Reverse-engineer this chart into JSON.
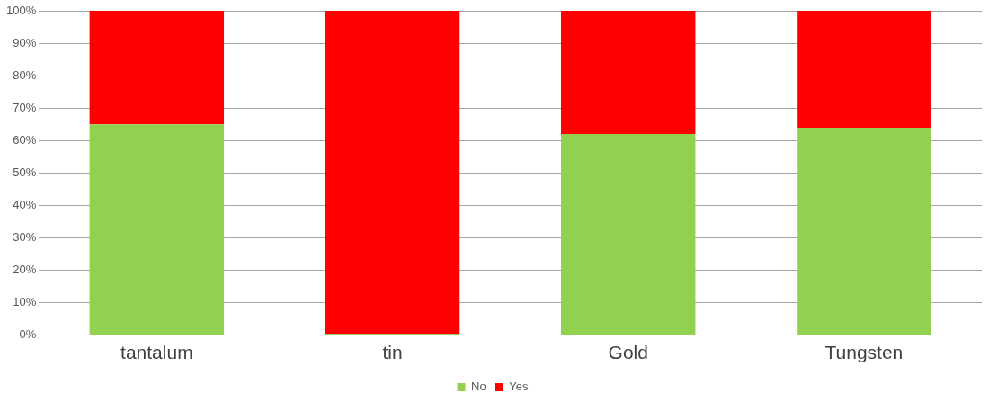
{
  "chart_data": {
    "type": "bar",
    "stacked": true,
    "categories": [
      "tantalum",
      "tin",
      "Gold",
      "Tungsten"
    ],
    "series": [
      {
        "name": "No",
        "color": "#92d050",
        "values": [
          65,
          0.5,
          62,
          64
        ]
      },
      {
        "name": "Yes",
        "color": "#ff0000",
        "values": [
          35,
          99.5,
          38,
          36
        ]
      }
    ],
    "ylim": [
      0,
      100
    ],
    "yticks": [
      {
        "value": 0,
        "label": "0%"
      },
      {
        "value": 10,
        "label": "10%"
      },
      {
        "value": 20,
        "label": "20%"
      },
      {
        "value": 30,
        "label": "30%"
      },
      {
        "value": 40,
        "label": "40%"
      },
      {
        "value": 50,
        "label": "50%"
      },
      {
        "value": 60,
        "label": "60%"
      },
      {
        "value": 70,
        "label": "70%"
      },
      {
        "value": 80,
        "label": "80%"
      },
      {
        "value": 90,
        "label": "90%"
      },
      {
        "value": 100,
        "label": "100%"
      }
    ],
    "grid": "y",
    "legend": "bottom"
  }
}
